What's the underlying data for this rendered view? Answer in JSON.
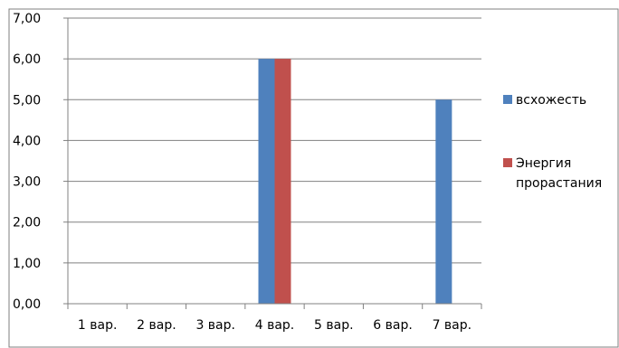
{
  "chart_data": {
    "type": "bar",
    "title": "",
    "xlabel": "",
    "ylabel": "",
    "categories": [
      "1 вар.",
      "2 вар.",
      "3 вар.",
      "4 вар.",
      "5 вар.",
      "6 вар.",
      "7 вар."
    ],
    "series": [
      {
        "name": "всхожесть",
        "color": "#4f81bd",
        "values": [
          0,
          0,
          0,
          6,
          0,
          0,
          5
        ]
      },
      {
        "name": "Энергия прорастания",
        "legend_lines": [
          "Энергия",
          "прорастания"
        ],
        "color": "#c0504d",
        "values": [
          0,
          0,
          0,
          6,
          0,
          0,
          0
        ]
      }
    ],
    "ylim": [
      0,
      7
    ],
    "yticks": [
      "0,00",
      "1,00",
      "2,00",
      "3,00",
      "4,00",
      "5,00",
      "6,00",
      "7,00"
    ],
    "grid": true,
    "legend_position": "right"
  }
}
